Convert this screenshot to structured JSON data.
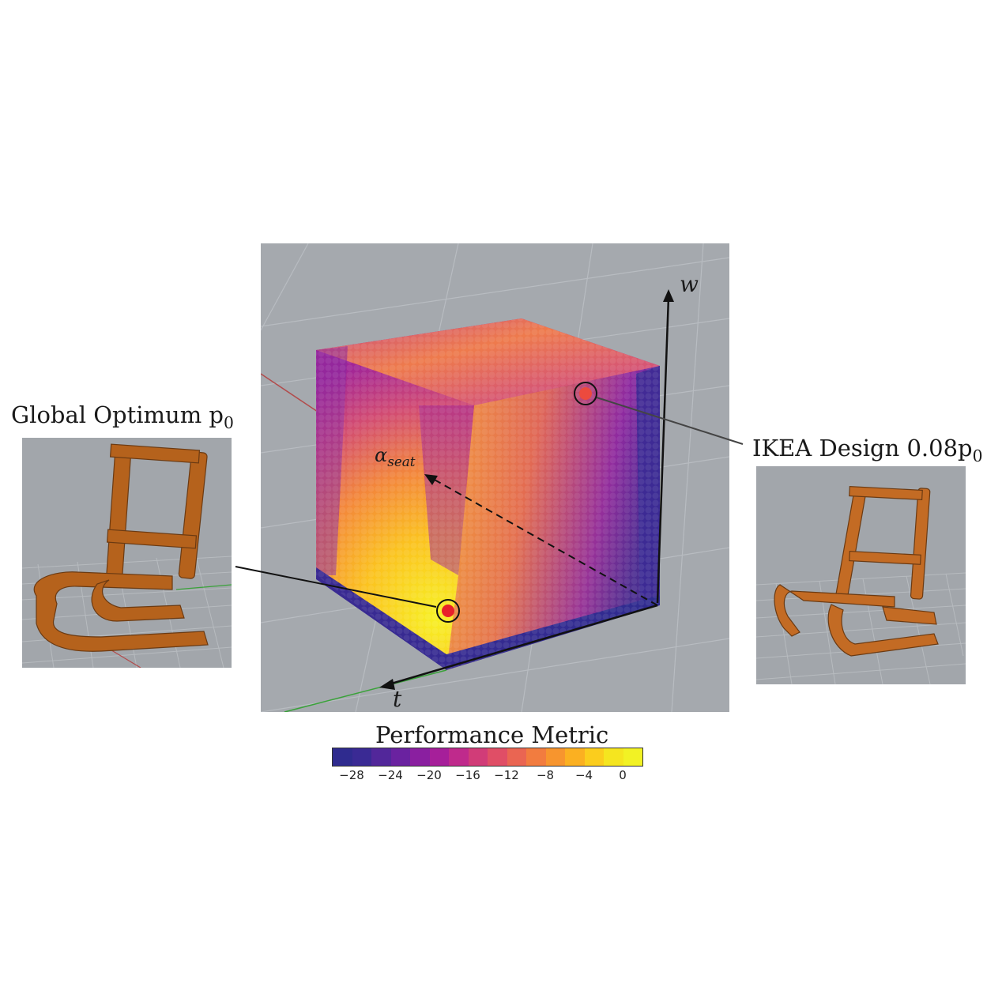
{
  "labels": {
    "global_optimum": "Global Optimum p",
    "global_optimum_sub": "0",
    "ikea_design": "IKEA Design 0.08p",
    "ikea_design_sub": "0",
    "axis_w": "w",
    "axis_t": "t",
    "axis_alpha": "α",
    "axis_alpha_sub": "seat"
  },
  "colorbar": {
    "title": "Performance Metric",
    "ticks": [
      "−28",
      "−24",
      "−20",
      "−16",
      "−12",
      "−8",
      "−4",
      "0"
    ],
    "colors": [
      "#2f2b8f",
      "#3a2a94",
      "#52279a",
      "#6a22a0",
      "#8a1fa0",
      "#a61f9a",
      "#bf2a8c",
      "#d13c78",
      "#e04e66",
      "#ea6552",
      "#f27c3f",
      "#f7952e",
      "#fbb021",
      "#fbcd1d",
      "#f5e51f",
      "#f2f224"
    ]
  },
  "markers": {
    "optimum_color": "#e8202a",
    "ikea_color": "#ec4a3e"
  }
}
